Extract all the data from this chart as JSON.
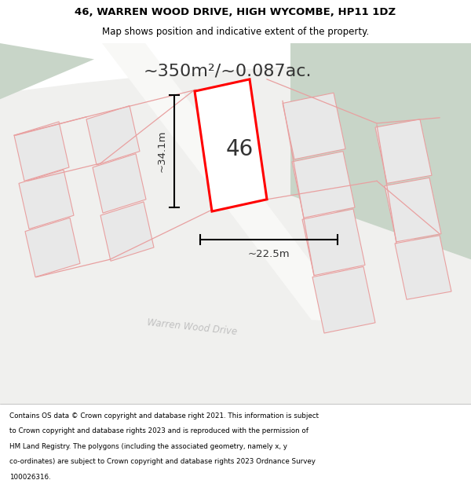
{
  "title": "46, WARREN WOOD DRIVE, HIGH WYCOMBE, HP11 1DZ",
  "subtitle": "Map shows position and indicative extent of the property.",
  "area_text": "~350m²/~0.087ac.",
  "property_number": "46",
  "dim_height": "~34.1m",
  "dim_width": "~22.5m",
  "road_label": "Warren Wood Drive",
  "footer_lines": [
    "Contains OS data © Crown copyright and database right 2021. This information is subject",
    "to Crown copyright and database rights 2023 and is reproduced with the permission of",
    "HM Land Registry. The polygons (including the associated geometry, namely x, y",
    "co-ordinates) are subject to Crown copyright and database rights 2023 Ordnance Survey",
    "100026316."
  ],
  "bg_color": "#dde5dd",
  "parcel_outline_color": "#e8a0a0",
  "highlight_color": "#ff0000",
  "fig_width": 6.0,
  "fig_height": 6.25
}
